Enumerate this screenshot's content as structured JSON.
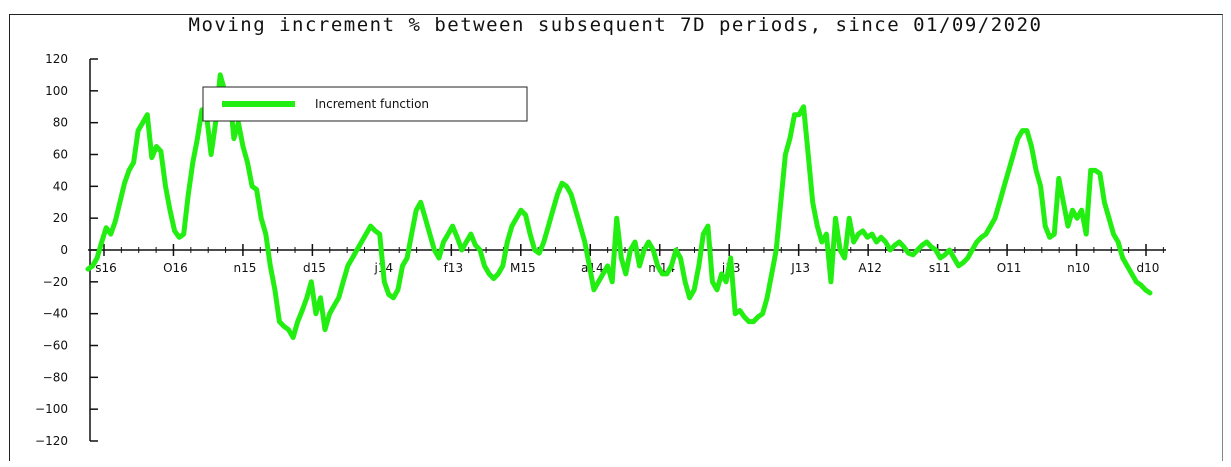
{
  "chart_data": {
    "type": "line",
    "title": "Moving increment % between subsequent 7D periods, since 01/09/2020",
    "xlabel": "",
    "ylabel": "",
    "ylim": [
      -120,
      120
    ],
    "yticks": [
      120,
      100,
      80,
      60,
      40,
      20,
      0,
      -20,
      -40,
      -60,
      -80,
      -100,
      -120
    ],
    "xtick_labels": [
      "s16",
      "O16",
      "n15",
      "d15",
      "j14",
      "f13",
      "M15",
      "a14",
      "m14",
      "j13",
      "J13",
      "A12",
      "s11",
      "O11",
      "n10",
      "d10"
    ],
    "legend_position": "top-left",
    "grid": false,
    "series": [
      {
        "name": "Increment function",
        "color": "#22ee11",
        "values": [
          -12,
          -10,
          -5,
          5,
          14,
          10,
          18,
          30,
          42,
          50,
          55,
          75,
          80,
          85,
          58,
          65,
          62,
          40,
          25,
          12,
          8,
          10,
          35,
          55,
          70,
          88,
          85,
          60,
          80,
          110,
          100,
          100,
          70,
          80,
          65,
          55,
          40,
          38,
          20,
          10,
          -10,
          -25,
          -45,
          -48,
          -50,
          -55,
          -45,
          -38,
          -30,
          -20,
          -40,
          -30,
          -50,
          -40,
          -35,
          -30,
          -20,
          -10,
          -5,
          0,
          5,
          10,
          15,
          12,
          10,
          -20,
          -28,
          -30,
          -25,
          -10,
          -5,
          10,
          25,
          30,
          20,
          10,
          0,
          -5,
          5,
          10,
          15,
          8,
          0,
          5,
          10,
          3,
          0,
          -10,
          -15,
          -18,
          -15,
          -10,
          5,
          15,
          20,
          25,
          22,
          10,
          0,
          -2,
          5,
          15,
          25,
          35,
          42,
          40,
          35,
          25,
          15,
          5,
          -10,
          -25,
          -20,
          -15,
          -10,
          -20,
          20,
          -5,
          -15,
          0,
          5,
          -10,
          0,
          5,
          0,
          -10,
          -15,
          -15,
          -10,
          0,
          -5,
          -20,
          -30,
          -25,
          -10,
          10,
          15,
          -20,
          -25,
          -15,
          -20,
          -5,
          -40,
          -38,
          -42,
          -45,
          -45,
          -42,
          -40,
          -30,
          -15,
          0,
          30,
          60,
          70,
          85,
          85,
          90,
          60,
          30,
          15,
          5,
          10,
          -20,
          20,
          0,
          -5,
          20,
          5,
          10,
          12,
          8,
          10,
          5,
          8,
          5,
          0,
          3,
          5,
          2,
          -2,
          -3,
          0,
          3,
          5,
          2,
          0,
          -5,
          -3,
          0,
          -5,
          -10,
          -8,
          -5,
          0,
          5,
          8,
          10,
          15,
          20,
          30,
          40,
          50,
          60,
          70,
          75,
          75,
          65,
          50,
          40,
          15,
          8,
          10,
          45,
          30,
          15,
          25,
          20,
          25,
          10,
          50,
          50,
          48,
          30,
          20,
          10,
          5,
          -5,
          -10,
          -15,
          -20,
          -22,
          -25,
          -27
        ]
      }
    ]
  }
}
